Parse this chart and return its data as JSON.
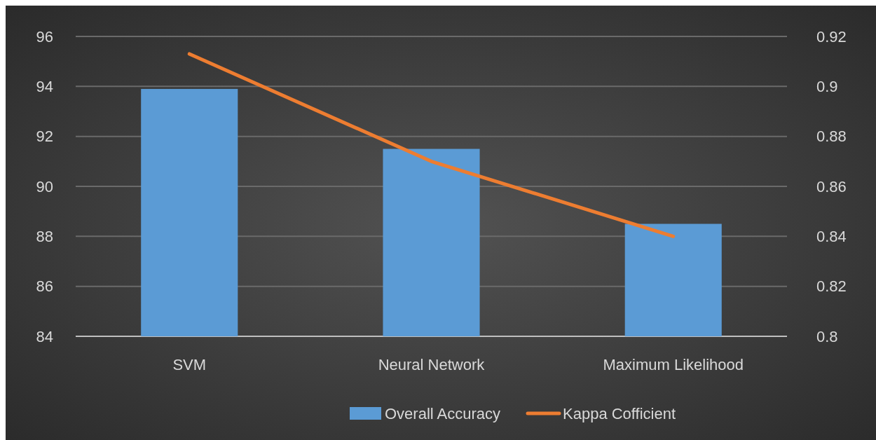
{
  "chart_data": {
    "type": "bar",
    "categories": [
      "SVM",
      "Neural Network",
      "Maximum Likelihood"
    ],
    "series": [
      {
        "name": "Overall Accuracy",
        "color": "#5b9bd5",
        "values": [
          93.9,
          91.5,
          88.5
        ]
      },
      {
        "name": "Kappa Cofficient",
        "type": "line",
        "axis": "y2",
        "color": "#ed7d31",
        "values": [
          0.913,
          0.87,
          0.84
        ]
      }
    ],
    "ylim": [
      84,
      96
    ],
    "yticks": [
      84,
      86,
      88,
      90,
      92,
      94,
      96
    ],
    "y2lim": [
      0.8,
      0.92
    ],
    "y2ticks": [
      {
        "value": 0.8,
        "label": "0.8"
      },
      0.82,
      0.84,
      0.86,
      0.88,
      {
        "value": 0.9,
        "label": "0.9"
      },
      0.92
    ],
    "grid": "y",
    "legend": "bottom",
    "marker": "none",
    "line_style": "solid"
  }
}
